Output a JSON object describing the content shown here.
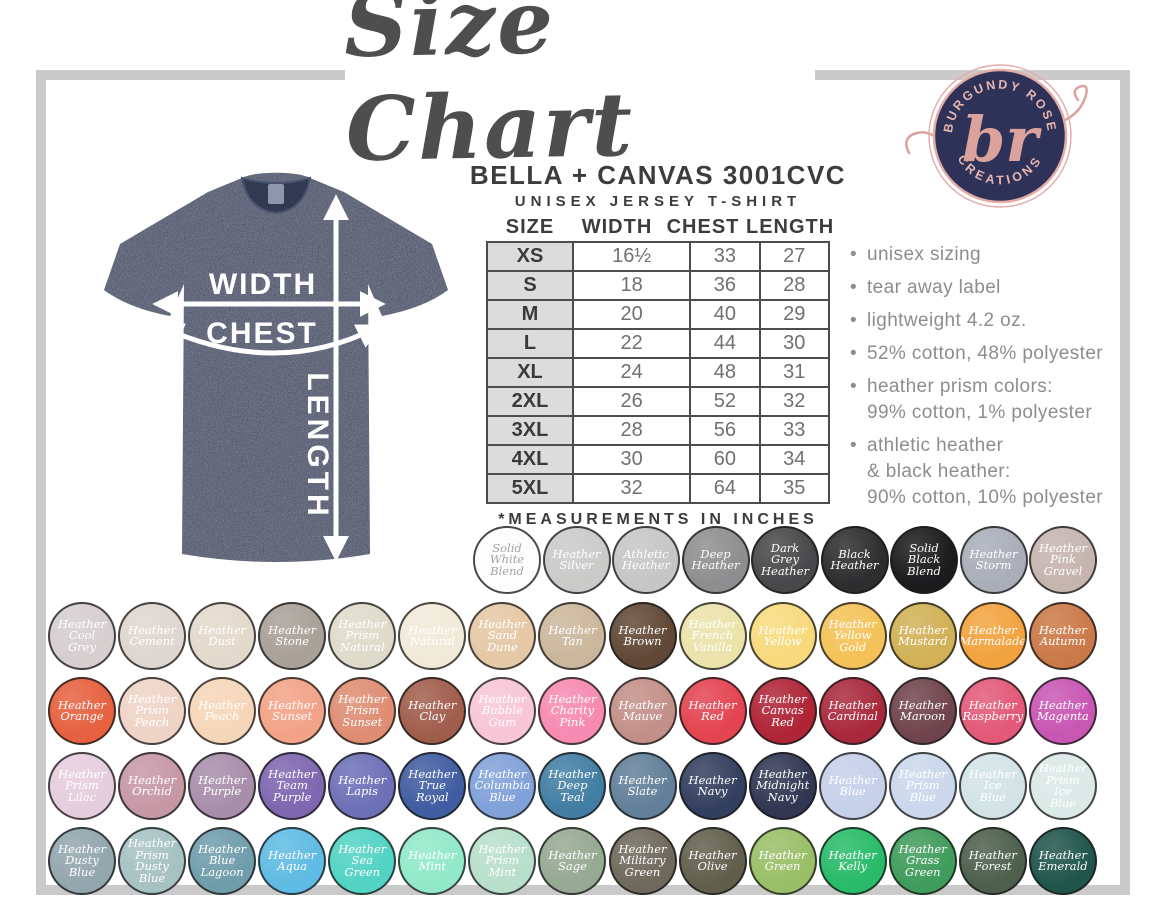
{
  "title": "Size Chart",
  "logo": {
    "top_text": "BURGUNDY ROSE",
    "bottom_text": "CREATIONS",
    "monogram": "br",
    "navy": "#2f3258",
    "rose": "#dca39d"
  },
  "shirt": {
    "color": "#3c4560",
    "labels": {
      "width": "WIDTH",
      "chest": "CHEST",
      "length": "LENGTH"
    }
  },
  "size_table": {
    "title": "BELLA + CANVAS 3001CVC",
    "subtitle": "UNISEX JERSEY T-SHIRT",
    "headers": [
      "SIZE",
      "WIDTH",
      "CHEST",
      "LENGTH"
    ],
    "rows": [
      [
        "XS",
        "16½",
        "33",
        "27"
      ],
      [
        "S",
        "18",
        "36",
        "28"
      ],
      [
        "M",
        "20",
        "40",
        "29"
      ],
      [
        "L",
        "22",
        "44",
        "30"
      ],
      [
        "XL",
        "24",
        "48",
        "31"
      ],
      [
        "2XL",
        "26",
        "52",
        "32"
      ],
      [
        "3XL",
        "28",
        "56",
        "33"
      ],
      [
        "4XL",
        "30",
        "60",
        "34"
      ],
      [
        "5XL",
        "32",
        "64",
        "35"
      ]
    ],
    "footnote": "*MEASUREMENTS IN INCHES"
  },
  "features": [
    [
      "unisex sizing"
    ],
    [
      "tear away label"
    ],
    [
      "lightweight 4.2 oz."
    ],
    [
      "52% cotton, 48% polyester"
    ],
    [
      "heather prism colors:",
      "99% cotton, 1% polyester"
    ],
    [
      "athletic heather",
      "& black heather:",
      "90% cotton, 10% polyester"
    ]
  ],
  "swatch_rows": [
    [
      {
        "n": "Solid White Blend",
        "c": "#fdfdfd",
        "t": "#a3a3a3",
        "b": "#4a4a4a"
      },
      {
        "n": "Heather Silver",
        "c": "#cacbc9"
      },
      {
        "n": "Athletic Heather",
        "c": "#c6c6c6"
      },
      {
        "n": "Deep Heather",
        "c": "#8e8e90"
      },
      {
        "n": "Dark Grey Heather",
        "c": "#48484a"
      },
      {
        "n": "Black Heather",
        "c": "#2d2d2f"
      },
      {
        "n": "Solid Black Blend",
        "c": "#1b1b1d"
      },
      {
        "n": "Heather Storm",
        "c": "#a9aeb9"
      },
      {
        "n": "Heather Pink Gravel",
        "c": "#c6b4af"
      }
    ],
    [
      {
        "n": "Heather Cool Grey",
        "c": "#d6cecf"
      },
      {
        "n": "Heather Cement",
        "c": "#ded6d0"
      },
      {
        "n": "Heather Dust",
        "c": "#e3d9cb"
      },
      {
        "n": "Heather Stone",
        "c": "#a9a098"
      },
      {
        "n": "Heather Prism Natural",
        "c": "#dedbca"
      },
      {
        "n": "Heather Natural",
        "c": "#f1ead9"
      },
      {
        "n": "Heather Sand Dune",
        "c": "#e5c8a5"
      },
      {
        "n": "Heather Tan",
        "c": "#cbb79b"
      },
      {
        "n": "Heather Brown",
        "c": "#614836"
      },
      {
        "n": "Heather French Vanilla",
        "c": "#ebe3aa"
      },
      {
        "n": "Heather Yellow",
        "c": "#f8da7d"
      },
      {
        "n": "Heather Yellow Gold",
        "c": "#f4c258"
      },
      {
        "n": "Heather Mustard",
        "c": "#d1b156"
      },
      {
        "n": "Heather Marmalade",
        "c": "#f2a33f"
      },
      {
        "n": "Heather Autumn",
        "c": "#cb7948"
      }
    ],
    [
      {
        "n": "Heather Orange",
        "c": "#e6613f"
      },
      {
        "n": "Heather Prism Peach",
        "c": "#eed4c6"
      },
      {
        "n": "Heather Peach",
        "c": "#f6d6b8"
      },
      {
        "n": "Heather Sunset",
        "c": "#f2a387"
      },
      {
        "n": "Heather Prism Sunset",
        "c": "#de8d73"
      },
      {
        "n": "Heather Clay",
        "c": "#a15d4c"
      },
      {
        "n": "Heather Bubble Gum",
        "c": "#f8c6d6"
      },
      {
        "n": "Heather Charity Pink",
        "c": "#f78ab1"
      },
      {
        "n": "Heather Mauve",
        "c": "#c39089"
      },
      {
        "n": "Heather Red",
        "c": "#e34450"
      },
      {
        "n": "Heather Canvas Red",
        "c": "#af2536"
      },
      {
        "n": "Heather Cardinal",
        "c": "#a9293c"
      },
      {
        "n": "Heather Maroon",
        "c": "#70444c"
      },
      {
        "n": "Heather Raspberry",
        "c": "#e35978"
      },
      {
        "n": "Heather Magenta",
        "c": "#c856b3"
      }
    ],
    [
      {
        "n": "Heather Prism Lilac",
        "c": "#e6cddd"
      },
      {
        "n": "Heather Orchid",
        "c": "#c698a6"
      },
      {
        "n": "Heather Purple",
        "c": "#a88eab"
      },
      {
        "n": "Heather Team Purple",
        "c": "#7f66b0"
      },
      {
        "n": "Heather Lapis",
        "c": "#6d70b7"
      },
      {
        "n": "Heather True Royal",
        "c": "#405da1"
      },
      {
        "n": "Heather Columbia Blue",
        "c": "#81a1d9"
      },
      {
        "n": "Heather Deep Teal",
        "c": "#427ea3"
      },
      {
        "n": "Heather Slate",
        "c": "#628099"
      },
      {
        "n": "Heather Navy",
        "c": "#333f5f"
      },
      {
        "n": "Heather Midnight Navy",
        "c": "#313753"
      },
      {
        "n": "Heather Blue",
        "c": "#c6d0e9"
      },
      {
        "n": "Heather Prism Blue",
        "c": "#cbd7eb"
      },
      {
        "n": "Heather Ice Blue",
        "c": "#d2e3e7"
      },
      {
        "n": "Heather Prism Ice Blue",
        "c": "#dbe9e7"
      }
    ],
    [
      {
        "n": "Heather Dusty Blue",
        "c": "#92a6ae"
      },
      {
        "n": "Heather Prism Dusty Blue",
        "c": "#a6c2c3"
      },
      {
        "n": "Heather Blue Lagoon",
        "c": "#709dab"
      },
      {
        "n": "Heather Aqua",
        "c": "#5ebbe3"
      },
      {
        "n": "Heather Sea Green",
        "c": "#52d3c3"
      },
      {
        "n": "Heather Mint",
        "c": "#91e9c9"
      },
      {
        "n": "Heather Prism Mint",
        "c": "#b8dfcb"
      },
      {
        "n": "Heather Sage",
        "c": "#96a992"
      },
      {
        "n": "Heather Military Green",
        "c": "#6e695b"
      },
      {
        "n": "Heather Olive",
        "c": "#615f4b"
      },
      {
        "n": "Heather Green",
        "c": "#99bf67"
      },
      {
        "n": "Heather Kelly",
        "c": "#28bb68"
      },
      {
        "n": "Heather Grass Green",
        "c": "#409c5b"
      },
      {
        "n": "Heather Forest",
        "c": "#4d5f4d"
      },
      {
        "n": "Heather Emerald",
        "c": "#20554b"
      }
    ]
  ]
}
